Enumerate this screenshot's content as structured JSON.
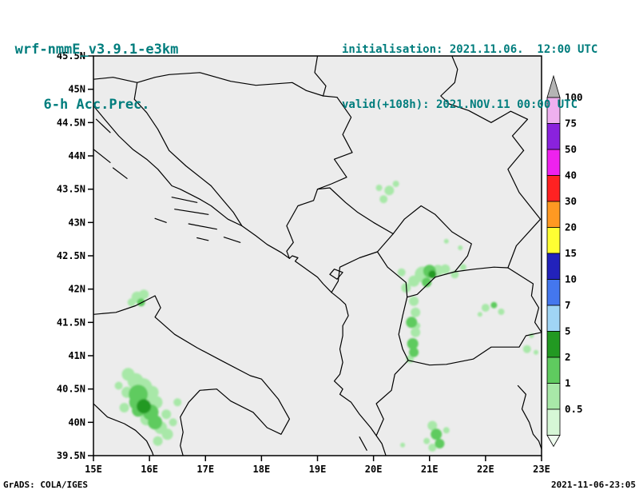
{
  "header": {
    "model": "wrf-nmmE_v3.9.1-e3km",
    "product": "6-h Acc.Prec.",
    "initialisation": "initialisation: 2021.11.06.  12:00 UTC",
    "valid": "valid(+108h): 2021.NOV.11 00:00 UTC"
  },
  "footer": {
    "left": "GrADS: COLA/IGES",
    "right": "2021-11-06-23:05"
  },
  "colors": {
    "title_teal": "#007d7d",
    "map_bg": "#ececec",
    "line": "#000000"
  },
  "axes": {
    "lat": [
      {
        "v": 45.5,
        "label": "45.5N"
      },
      {
        "v": 45,
        "label": "45N"
      },
      {
        "v": 44.5,
        "label": "44.5N"
      },
      {
        "v": 44,
        "label": "44N"
      },
      {
        "v": 43.5,
        "label": "43.5N"
      },
      {
        "v": 43,
        "label": "43N"
      },
      {
        "v": 42.5,
        "label": "42.5N"
      },
      {
        "v": 42,
        "label": "42N"
      },
      {
        "v": 41.5,
        "label": "41.5N"
      },
      {
        "v": 41,
        "label": "41N"
      },
      {
        "v": 40.5,
        "label": "40.5N"
      },
      {
        "v": 40,
        "label": "40N"
      },
      {
        "v": 39.5,
        "label": "39.5N"
      }
    ],
    "lon": [
      {
        "v": 15,
        "label": "15E"
      },
      {
        "v": 16,
        "label": "16E"
      },
      {
        "v": 17,
        "label": "17E"
      },
      {
        "v": 18,
        "label": "18E"
      },
      {
        "v": 19,
        "label": "19E"
      },
      {
        "v": 20,
        "label": "20E"
      },
      {
        "v": 21,
        "label": "21E"
      },
      {
        "v": 22,
        "label": "22E"
      },
      {
        "v": 23,
        "label": "23E"
      }
    ]
  },
  "legend": {
    "values": [
      "100",
      "75",
      "50",
      "40",
      "30",
      "20",
      "15",
      "10",
      "7",
      "5",
      "2",
      "1",
      "0.5"
    ],
    "colors_top_to_bottom": [
      "#efb0ef",
      "#8a22dd",
      "#ee22ee",
      "#ff2222",
      "#ff9922",
      "#ffff33",
      "#2222bb",
      "#4477ee",
      "#a0d5f5",
      "#229922",
      "#5fcb5f",
      "#a8e8a8",
      "#d6f7d6"
    ],
    "arrow_color": "#b4b4b4",
    "below_min_color": "#eefbee"
  },
  "map": {
    "lon_range": [
      15,
      23
    ],
    "lat_range": [
      39.5,
      45.5
    ],
    "coastlines": [
      [
        [
          15.0,
          44.75
        ],
        [
          15.2,
          44.55
        ],
        [
          15.45,
          44.3
        ],
        [
          15.7,
          44.1
        ],
        [
          15.95,
          43.95
        ],
        [
          16.15,
          43.8
        ],
        [
          16.4,
          43.55
        ],
        [
          16.55,
          43.5
        ],
        [
          16.9,
          43.35
        ],
        [
          17.1,
          43.25
        ],
        [
          17.4,
          43.05
        ],
        [
          17.65,
          42.95
        ],
        [
          17.9,
          42.8
        ],
        [
          18.1,
          42.67
        ],
        [
          18.35,
          42.55
        ],
        [
          18.5,
          42.46
        ],
        [
          18.55,
          42.5
        ],
        [
          18.65,
          42.47
        ],
        [
          18.6,
          42.42
        ],
        [
          18.8,
          42.3
        ],
        [
          19.0,
          42.18
        ],
        [
          19.1,
          42.08
        ],
        [
          19.25,
          41.95
        ],
        [
          19.4,
          41.85
        ],
        [
          19.5,
          41.77
        ],
        [
          19.55,
          41.6
        ],
        [
          19.45,
          41.45
        ],
        [
          19.45,
          41.3
        ],
        [
          19.4,
          41.1
        ],
        [
          19.45,
          40.9
        ],
        [
          19.4,
          40.72
        ],
        [
          19.3,
          40.62
        ],
        [
          19.45,
          40.5
        ],
        [
          19.4,
          40.42
        ],
        [
          19.6,
          40.3
        ],
        [
          19.75,
          40.12
        ],
        [
          19.95,
          39.92
        ],
        [
          20.05,
          39.8
        ],
        [
          20.15,
          39.68
        ],
        [
          20.22,
          39.5
        ]
      ],
      [
        [
          15.0,
          41.62
        ],
        [
          15.4,
          41.65
        ],
        [
          15.75,
          41.75
        ],
        [
          16.1,
          41.9
        ],
        [
          16.2,
          41.72
        ],
        [
          16.1,
          41.58
        ],
        [
          16.45,
          41.32
        ],
        [
          16.85,
          41.12
        ],
        [
          17.3,
          40.92
        ],
        [
          17.8,
          40.7
        ],
        [
          18.0,
          40.65
        ],
        [
          18.3,
          40.35
        ],
        [
          18.5,
          40.05
        ],
        [
          18.35,
          39.82
        ],
        [
          18.1,
          39.92
        ],
        [
          17.85,
          40.15
        ],
        [
          17.45,
          40.32
        ],
        [
          17.2,
          40.5
        ],
        [
          16.9,
          40.48
        ],
        [
          16.7,
          40.3
        ],
        [
          16.55,
          40.08
        ],
        [
          16.6,
          39.85
        ],
        [
          16.55,
          39.65
        ],
        [
          16.6,
          39.5
        ]
      ],
      [
        [
          15.0,
          40.28
        ],
        [
          15.25,
          40.08
        ],
        [
          15.55,
          39.98
        ],
        [
          15.75,
          39.88
        ],
        [
          15.95,
          39.72
        ],
        [
          16.05,
          39.55
        ],
        [
          16.07,
          39.5
        ]
      ],
      [
        [
          22.58,
          40.55
        ],
        [
          22.72,
          40.42
        ],
        [
          22.65,
          40.2
        ],
        [
          22.78,
          40.0
        ],
        [
          22.85,
          39.82
        ],
        [
          22.95,
          39.72
        ],
        [
          23.0,
          39.6
        ]
      ]
    ],
    "islands": [
      [
        [
          15.05,
          44.55
        ],
        [
          15.3,
          44.35
        ]
      ],
      [
        [
          15.0,
          44.1
        ],
        [
          15.3,
          43.9
        ]
      ],
      [
        [
          15.35,
          43.82
        ],
        [
          15.6,
          43.66
        ]
      ],
      [
        [
          16.4,
          43.38
        ],
        [
          16.85,
          43.3
        ]
      ],
      [
        [
          16.45,
          43.2
        ],
        [
          17.05,
          43.12
        ]
      ],
      [
        [
          16.1,
          43.06
        ],
        [
          16.3,
          43.0
        ]
      ],
      [
        [
          16.7,
          42.98
        ],
        [
          17.2,
          42.9
        ]
      ],
      [
        [
          17.33,
          42.78
        ],
        [
          17.62,
          42.7
        ]
      ],
      [
        [
          16.85,
          42.77
        ],
        [
          17.05,
          42.73
        ]
      ],
      [
        [
          19.75,
          39.78
        ],
        [
          19.88,
          39.58
        ]
      ],
      [
        [
          19.3,
          42.3
        ],
        [
          19.45,
          42.25
        ],
        [
          19.35,
          42.15
        ],
        [
          19.22,
          42.22
        ],
        [
          19.3,
          42.3
        ]
      ]
    ],
    "borders": [
      [
        [
          15.0,
          45.15
        ],
        [
          15.35,
          45.18
        ],
        [
          15.78,
          45.1
        ],
        [
          16.1,
          45.18
        ],
        [
          16.35,
          45.22
        ],
        [
          16.9,
          45.25
        ],
        [
          17.45,
          45.12
        ],
        [
          17.9,
          45.06
        ],
        [
          18.55,
          45.1
        ],
        [
          18.8,
          44.98
        ],
        [
          19.1,
          44.9
        ],
        [
          19.35,
          44.88
        ]
      ],
      [
        [
          15.78,
          45.1
        ],
        [
          15.73,
          44.85
        ],
        [
          15.95,
          44.65
        ],
        [
          16.15,
          44.4
        ],
        [
          16.35,
          44.08
        ],
        [
          16.65,
          43.85
        ],
        [
          17.1,
          43.55
        ],
        [
          17.3,
          43.35
        ],
        [
          17.5,
          43.15
        ],
        [
          17.65,
          42.95
        ]
      ],
      [
        [
          19.0,
          45.5
        ],
        [
          18.95,
          45.25
        ],
        [
          19.15,
          45.05
        ],
        [
          19.1,
          44.9
        ]
      ],
      [
        [
          19.35,
          44.88
        ],
        [
          19.6,
          44.58
        ],
        [
          19.45,
          44.32
        ],
        [
          19.62,
          44.05
        ],
        [
          19.3,
          43.95
        ],
        [
          19.52,
          43.68
        ],
        [
          19.25,
          43.58
        ],
        [
          19.0,
          43.5
        ]
      ],
      [
        [
          19.0,
          43.5
        ],
        [
          18.93,
          43.33
        ],
        [
          18.65,
          43.25
        ],
        [
          18.45,
          42.95
        ],
        [
          18.57,
          42.7
        ],
        [
          18.45,
          42.57
        ],
        [
          18.5,
          42.46
        ]
      ],
      [
        [
          19.0,
          43.5
        ],
        [
          19.22,
          43.52
        ],
        [
          19.5,
          43.3
        ],
        [
          19.72,
          43.15
        ],
        [
          20.0,
          43.0
        ],
        [
          20.35,
          42.83
        ]
      ],
      [
        [
          20.35,
          42.83
        ],
        [
          20.55,
          43.05
        ],
        [
          20.85,
          43.25
        ],
        [
          21.1,
          43.12
        ],
        [
          21.4,
          42.86
        ],
        [
          21.75,
          42.68
        ],
        [
          21.68,
          42.5
        ],
        [
          21.45,
          42.26
        ],
        [
          21.1,
          42.18
        ],
        [
          20.78,
          41.92
        ],
        [
          20.6,
          41.88
        ]
      ],
      [
        [
          20.6,
          41.88
        ],
        [
          20.58,
          42.1
        ],
        [
          20.25,
          42.33
        ],
        [
          20.07,
          42.56
        ],
        [
          20.35,
          42.83
        ]
      ],
      [
        [
          20.07,
          42.56
        ],
        [
          19.75,
          42.47
        ],
        [
          19.4,
          42.33
        ],
        [
          19.37,
          42.12
        ],
        [
          19.25,
          41.95
        ]
      ],
      [
        [
          21.45,
          42.26
        ],
        [
          21.8,
          42.3
        ],
        [
          22.15,
          42.33
        ],
        [
          22.4,
          42.32
        ]
      ],
      [
        [
          22.4,
          42.32
        ],
        [
          22.55,
          42.65
        ],
        [
          22.98,
          43.05
        ],
        [
          22.6,
          43.45
        ],
        [
          22.4,
          43.8
        ],
        [
          22.68,
          44.08
        ]
      ],
      [
        [
          22.68,
          44.08
        ],
        [
          22.48,
          44.3
        ],
        [
          22.75,
          44.55
        ],
        [
          22.45,
          44.67
        ],
        [
          22.1,
          44.5
        ],
        [
          21.7,
          44.68
        ],
        [
          21.35,
          44.78
        ],
        [
          21.2,
          44.9
        ],
        [
          21.45,
          45.1
        ],
        [
          21.5,
          45.3
        ],
        [
          21.4,
          45.5
        ]
      ],
      [
        [
          22.4,
          42.32
        ],
        [
          22.85,
          42.08
        ],
        [
          22.82,
          41.9
        ],
        [
          22.95,
          41.72
        ],
        [
          22.88,
          41.5
        ],
        [
          23.0,
          41.35
        ]
      ],
      [
        [
          20.62,
          40.93
        ],
        [
          21.0,
          40.86
        ],
        [
          21.3,
          40.87
        ],
        [
          21.78,
          40.95
        ],
        [
          22.1,
          41.13
        ],
        [
          22.6,
          41.13
        ],
        [
          22.72,
          41.3
        ],
        [
          23.0,
          41.35
        ]
      ],
      [
        [
          20.6,
          41.88
        ],
        [
          20.52,
          41.6
        ],
        [
          20.45,
          41.32
        ],
        [
          20.52,
          41.1
        ],
        [
          20.62,
          40.93
        ]
      ],
      [
        [
          20.62,
          40.93
        ],
        [
          20.38,
          40.72
        ],
        [
          20.32,
          40.48
        ],
        [
          20.05,
          40.28
        ],
        [
          20.18,
          40.05
        ],
        [
          20.05,
          39.8
        ]
      ]
    ],
    "precip": {
      "level_colors": [
        "#a8e8a8",
        "#5fcb5f",
        "#229922"
      ],
      "blobs": [
        [
          15.62,
          40.72,
          8,
          1
        ],
        [
          15.45,
          40.55,
          5,
          1
        ],
        [
          15.6,
          40.45,
          7,
          1
        ],
        [
          15.55,
          40.22,
          6,
          1
        ],
        [
          15.75,
          40.62,
          10,
          1
        ],
        [
          15.88,
          40.52,
          12,
          1
        ],
        [
          16.05,
          40.45,
          8,
          1
        ],
        [
          15.8,
          40.42,
          12,
          2
        ],
        [
          15.95,
          40.38,
          10,
          1
        ],
        [
          16.12,
          40.3,
          8,
          1
        ],
        [
          15.78,
          40.3,
          10,
          2
        ],
        [
          15.9,
          40.24,
          9,
          3
        ],
        [
          15.8,
          40.18,
          8,
          2
        ],
        [
          16.02,
          40.15,
          10,
          2
        ],
        [
          16.3,
          40.12,
          6,
          1
        ],
        [
          15.95,
          40.05,
          8,
          1
        ],
        [
          16.1,
          40.0,
          9,
          2
        ],
        [
          16.42,
          40.0,
          5,
          1
        ],
        [
          16.2,
          39.92,
          8,
          1
        ],
        [
          16.32,
          39.82,
          7,
          1
        ],
        [
          16.15,
          39.72,
          6,
          1
        ],
        [
          16.5,
          40.3,
          5,
          1
        ],
        [
          15.78,
          41.88,
          7,
          1
        ],
        [
          15.9,
          41.92,
          6,
          1
        ],
        [
          15.68,
          41.8,
          5,
          1
        ],
        [
          15.85,
          41.8,
          5,
          2
        ],
        [
          20.88,
          42.22,
          10,
          1
        ],
        [
          21.0,
          42.27,
          8,
          2
        ],
        [
          21.05,
          42.22,
          5,
          3
        ],
        [
          21.15,
          42.28,
          7,
          1
        ],
        [
          21.28,
          42.3,
          6,
          1
        ],
        [
          20.72,
          42.12,
          7,
          1
        ],
        [
          20.58,
          42.02,
          6,
          1
        ],
        [
          20.5,
          42.25,
          5,
          1
        ],
        [
          21.45,
          42.22,
          5,
          1
        ],
        [
          21.6,
          42.33,
          4,
          1
        ],
        [
          20.95,
          42.1,
          6,
          2
        ],
        [
          20.72,
          41.82,
          6,
          1
        ],
        [
          20.75,
          41.65,
          6,
          1
        ],
        [
          20.68,
          41.5,
          7,
          2
        ],
        [
          20.78,
          41.45,
          4,
          1
        ],
        [
          20.75,
          41.35,
          6,
          1
        ],
        [
          20.7,
          41.18,
          7,
          2
        ],
        [
          20.72,
          41.05,
          6,
          2
        ],
        [
          20.65,
          40.95,
          5,
          1
        ],
        [
          20.28,
          43.48,
          6,
          1
        ],
        [
          20.18,
          43.35,
          5,
          1
        ],
        [
          20.4,
          43.58,
          4,
          1
        ],
        [
          20.1,
          43.52,
          4,
          1
        ],
        [
          21.05,
          39.95,
          6,
          1
        ],
        [
          21.12,
          39.82,
          7,
          2
        ],
        [
          21.18,
          39.68,
          6,
          2
        ],
        [
          21.05,
          39.62,
          5,
          1
        ],
        [
          21.3,
          39.88,
          4,
          1
        ],
        [
          20.95,
          39.72,
          4,
          1
        ],
        [
          20.52,
          39.66,
          3,
          1
        ],
        [
          22.0,
          41.72,
          5,
          1
        ],
        [
          22.15,
          41.76,
          4,
          2
        ],
        [
          22.28,
          41.66,
          4,
          1
        ],
        [
          21.9,
          41.62,
          3,
          1
        ],
        [
          22.74,
          41.1,
          5,
          1
        ],
        [
          22.82,
          41.3,
          3,
          1
        ],
        [
          22.9,
          41.05,
          3,
          1
        ],
        [
          21.3,
          42.72,
          3,
          1
        ],
        [
          21.55,
          42.62,
          3,
          1
        ]
      ]
    }
  }
}
